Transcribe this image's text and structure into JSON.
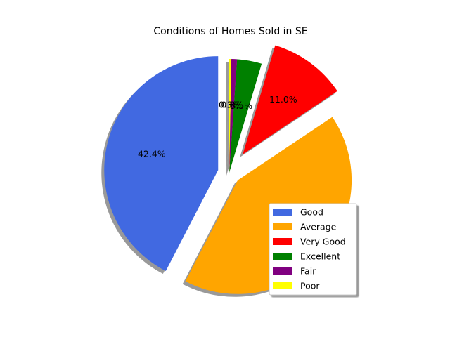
{
  "chart_data": {
    "type": "pie",
    "title": "Conditions of Homes Sold in SE",
    "start_angle_deg": 90,
    "direction": "counterclockwise",
    "shadow": true,
    "legend_position": "lower-right",
    "slices": [
      {
        "label": "Good",
        "value": 42.4,
        "pct_label": "42.4%",
        "color": "#4169e1",
        "explode": 0.1
      },
      {
        "label": "Average",
        "value": 42.0,
        "pct_label": "",
        "color": "#ffa500",
        "explode": 0.1
      },
      {
        "label": "Very Good",
        "value": 11.0,
        "pct_label": "11.0%",
        "color": "#ff0000",
        "explode": 0.2
      },
      {
        "label": "Excellent",
        "value": 3.5,
        "pct_label": "3.5%",
        "color": "#008000",
        "explode": 0.0
      },
      {
        "label": "Fair",
        "value": 0.8,
        "pct_label": "0.8%",
        "color": "#800080",
        "explode": 0.0
      },
      {
        "label": "Poor",
        "value": 0.3,
        "pct_label": "0.3%",
        "color": "#ffff00",
        "explode": 0.0
      }
    ]
  }
}
